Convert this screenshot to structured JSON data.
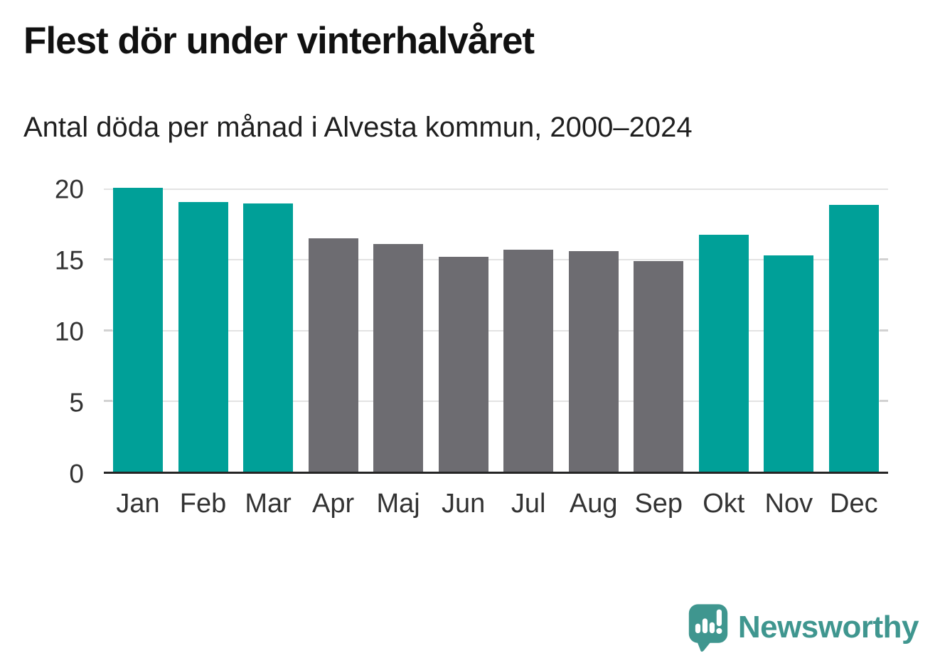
{
  "header": {
    "title": "Flest dör under vinterhalvåret",
    "subtitle": "Antal döda per månad i Alvesta kommun, 2000–2024"
  },
  "chart_data": {
    "type": "bar",
    "title": "Flest dör under vinterhalvåret",
    "subtitle": "Antal döda per månad i Alvesta kommun, 2000–2024",
    "categories": [
      "Jan",
      "Feb",
      "Mar",
      "Apr",
      "Maj",
      "Jun",
      "Jul",
      "Aug",
      "Sep",
      "Okt",
      "Nov",
      "Dec"
    ],
    "values": [
      20.1,
      19.1,
      19.0,
      16.5,
      16.1,
      15.2,
      15.7,
      15.6,
      14.9,
      16.8,
      15.3,
      18.9
    ],
    "bar_colors": [
      "teal",
      "teal",
      "teal",
      "gray",
      "gray",
      "gray",
      "gray",
      "gray",
      "gray",
      "teal",
      "teal",
      "teal"
    ],
    "colors": {
      "teal": "#00a098",
      "gray": "#6d6c71"
    },
    "xlabel": "",
    "ylabel": "",
    "ylim": [
      0,
      20.15
    ],
    "yticks": [
      0,
      5,
      10,
      15,
      20
    ],
    "grid": "horizontal",
    "legend": "none",
    "gridline_color": "#e3e3e3",
    "axis_line_color": "#252525",
    "tick_label_color": "#333333"
  },
  "footer": {
    "brand": "Newsworthy",
    "brand_color": "#3f968f",
    "logo_icon": "newsworthy-speech-bubble-bar-chart-icon"
  }
}
